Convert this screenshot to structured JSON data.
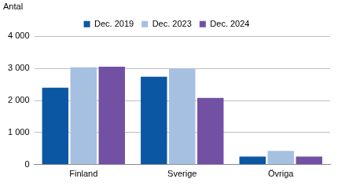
{
  "chart_data": {
    "type": "bar",
    "ylabel": "Antal",
    "categories": [
      "Finland",
      "Sverige",
      "Övriga"
    ],
    "series": [
      {
        "name": "Dec. 2019",
        "color": "#0b57a4",
        "values": [
          2400,
          2740,
          250
        ]
      },
      {
        "name": "Dec. 2023",
        "color": "#a6c0e1",
        "values": [
          3030,
          2990,
          430
        ]
      },
      {
        "name": "Dec. 2024",
        "color": "#7251a4",
        "values": [
          3050,
          2080,
          250
        ]
      }
    ],
    "ylim": [
      0,
      4000
    ],
    "yticks": [
      0,
      {
        "value": 1000,
        "label": "1 000"
      },
      {
        "value": 2000,
        "label": "2 000"
      },
      {
        "value": 3000,
        "label": "3 000"
      },
      {
        "value": 4000,
        "label": "4 000"
      }
    ],
    "grid": true,
    "legend": "top"
  }
}
